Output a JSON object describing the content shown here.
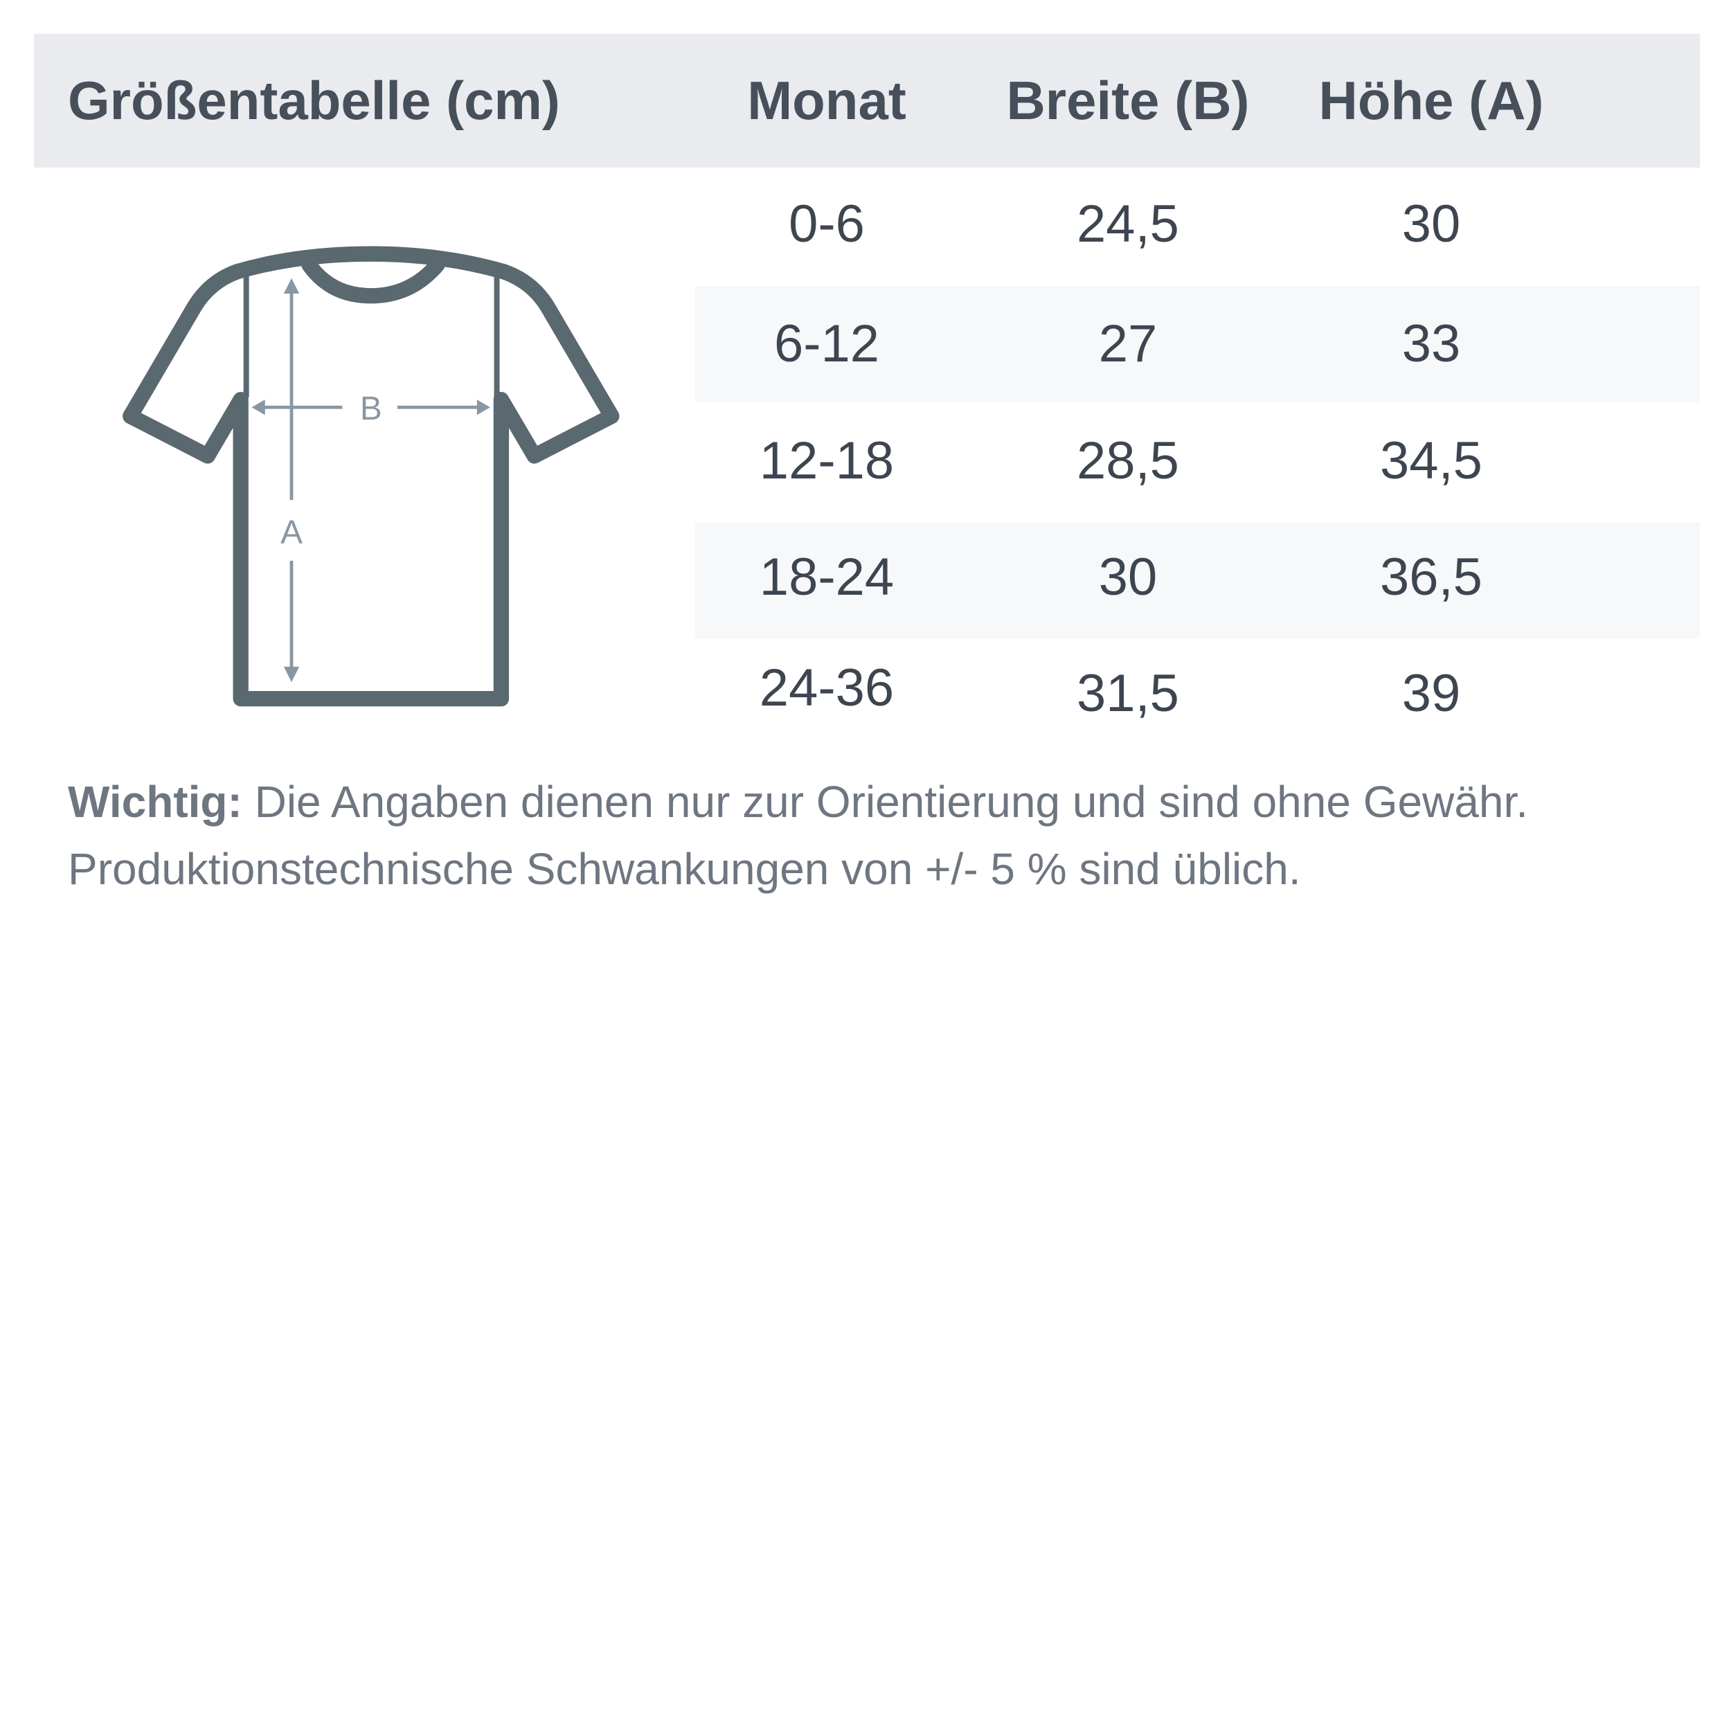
{
  "header": {
    "title": "Größentabelle (cm)",
    "col_month": "Monat",
    "col_width": "Breite (B)",
    "col_height": "Höhe (A)"
  },
  "rows": [
    {
      "month": "0-6",
      "width": "24,5",
      "height": "30"
    },
    {
      "month": "6-12",
      "width": "27",
      "height": "33"
    },
    {
      "month": "12-18",
      "width": "28,5",
      "height": "34,5"
    },
    {
      "month": "18-24",
      "width": "30",
      "height": "36,5"
    },
    {
      "month": "24-36",
      "width": "31,5",
      "height": "39"
    }
  ],
  "diagram": {
    "label_width": "B",
    "label_height": "A"
  },
  "note": {
    "bold": "Wichtig:",
    "line1": " Die Angaben dienen nur zur Orientierung und sind ohne Gewähr.",
    "line2": "Produktionstechnische Schwankungen von +/- 5 % sind üblich."
  },
  "colors": {
    "header_bg": "#e9ebef",
    "stripe_bg": "#f7f8fa",
    "shirt": "#5a6870",
    "arrows": "#8a97a2",
    "text": "#3d4550"
  }
}
